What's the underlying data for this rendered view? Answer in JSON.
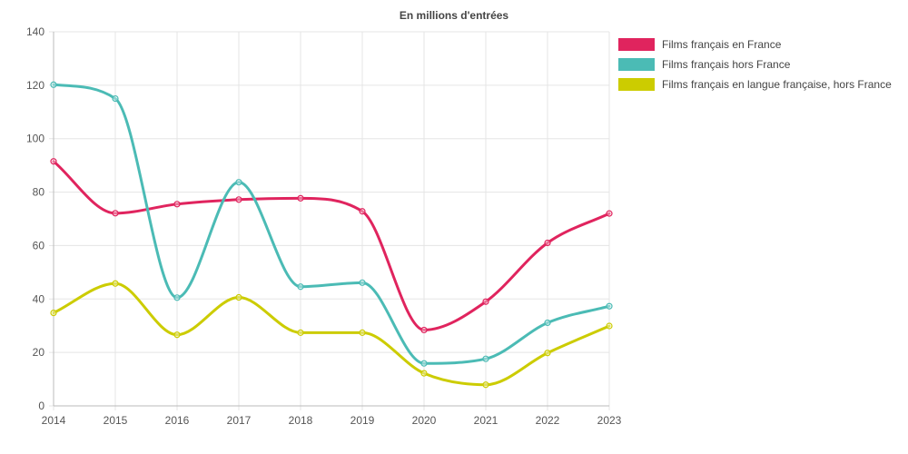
{
  "chart_data": {
    "type": "line",
    "title": "En millions d'entrées",
    "xlabel": "",
    "ylabel": "",
    "x": [
      "2014",
      "2015",
      "2016",
      "2017",
      "2018",
      "2019",
      "2020",
      "2021",
      "2022",
      "2023"
    ],
    "ylim": [
      0,
      140
    ],
    "yticks": [
      0,
      20,
      40,
      60,
      80,
      100,
      120,
      140
    ],
    "grid": true,
    "legend_position": "right",
    "series": [
      {
        "name": "Films français en France",
        "color": "#e0245e",
        "values": [
          91.5,
          72.1,
          75.5,
          77.2,
          77.7,
          72.8,
          28.4,
          39.0,
          61.0,
          72.0
        ]
      },
      {
        "name": "Films français hors France",
        "color": "#4bbbb5",
        "values": [
          120.2,
          115.0,
          40.5,
          83.7,
          44.6,
          46.1,
          15.9,
          17.6,
          31.1,
          37.3
        ]
      },
      {
        "name": "Films français en langue française, hors France",
        "color": "#cccc00",
        "values": [
          34.8,
          45.8,
          26.6,
          40.6,
          27.4,
          27.4,
          12.2,
          7.9,
          19.8,
          29.9
        ]
      }
    ]
  }
}
